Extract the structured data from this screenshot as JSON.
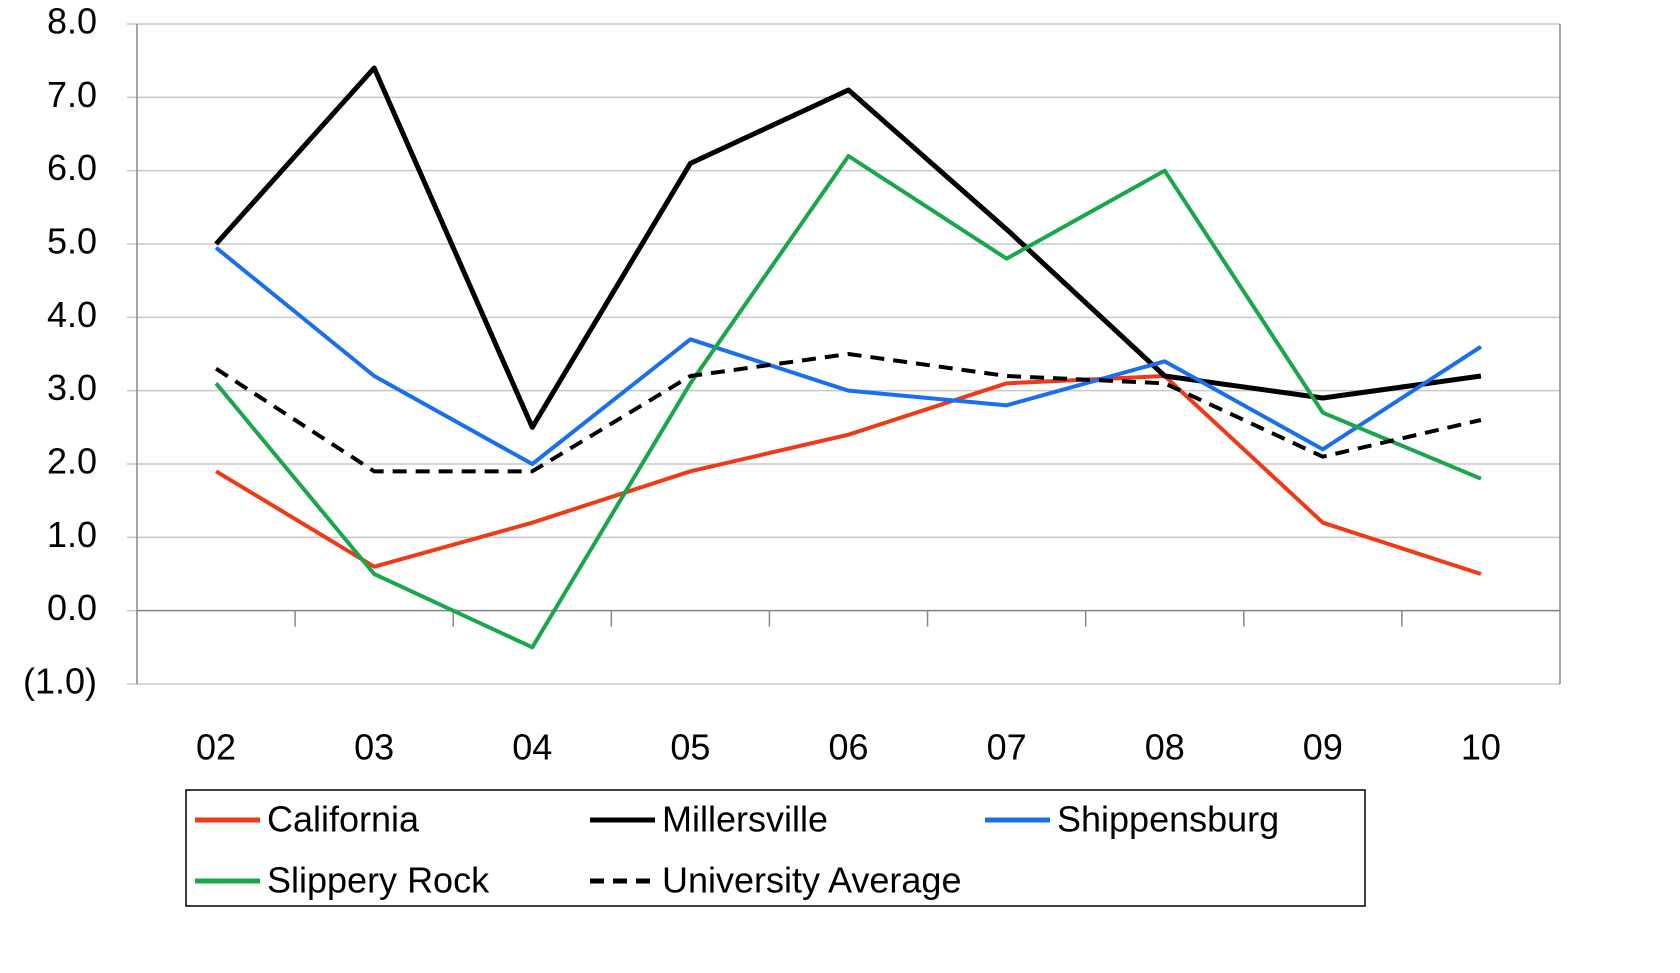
{
  "chart_data": {
    "type": "line",
    "categories": [
      "02",
      "03",
      "04",
      "05",
      "06",
      "07",
      "08",
      "09",
      "10"
    ],
    "series": [
      {
        "name": "California",
        "color": "#f03a17",
        "dash": false,
        "values": [
          1.9,
          0.6,
          1.2,
          1.9,
          2.4,
          3.1,
          3.2,
          1.2,
          0.5
        ]
      },
      {
        "name": "Millersville",
        "color": "#000000",
        "dash": false,
        "values": [
          5.0,
          7.4,
          2.5,
          6.1,
          7.1,
          5.2,
          3.2,
          2.9,
          3.2
        ]
      },
      {
        "name": "Shippensburg",
        "color": "#1a6ff0",
        "dash": false,
        "values": [
          4.95,
          3.2,
          2.0,
          3.7,
          3.0,
          2.8,
          3.4,
          2.2,
          3.6
        ]
      },
      {
        "name": "Slippery Rock",
        "color": "#1aa64a",
        "dash": false,
        "values": [
          3.1,
          0.5,
          -0.5,
          3.1,
          6.2,
          4.8,
          6.0,
          2.7,
          1.8
        ]
      },
      {
        "name": "University Average",
        "color": "#000000",
        "dash": true,
        "values": [
          3.3,
          1.9,
          1.9,
          3.2,
          3.5,
          3.2,
          3.1,
          2.1,
          2.6
        ]
      }
    ],
    "ylim": [
      -1,
      8
    ],
    "yticks": [
      {
        "value": -1,
        "label": "(1.0)"
      },
      {
        "value": 0,
        "label": "0.0"
      },
      {
        "value": 1,
        "label": "1.0"
      },
      {
        "value": 2,
        "label": "2.0"
      },
      {
        "value": 3,
        "label": "3.0"
      },
      {
        "value": 4,
        "label": "4.0"
      },
      {
        "value": 5,
        "label": "5.0"
      },
      {
        "value": 6,
        "label": "6.0"
      },
      {
        "value": 7,
        "label": "7.0"
      },
      {
        "value": 8,
        "label": "8.0"
      }
    ],
    "grid": true
  }
}
